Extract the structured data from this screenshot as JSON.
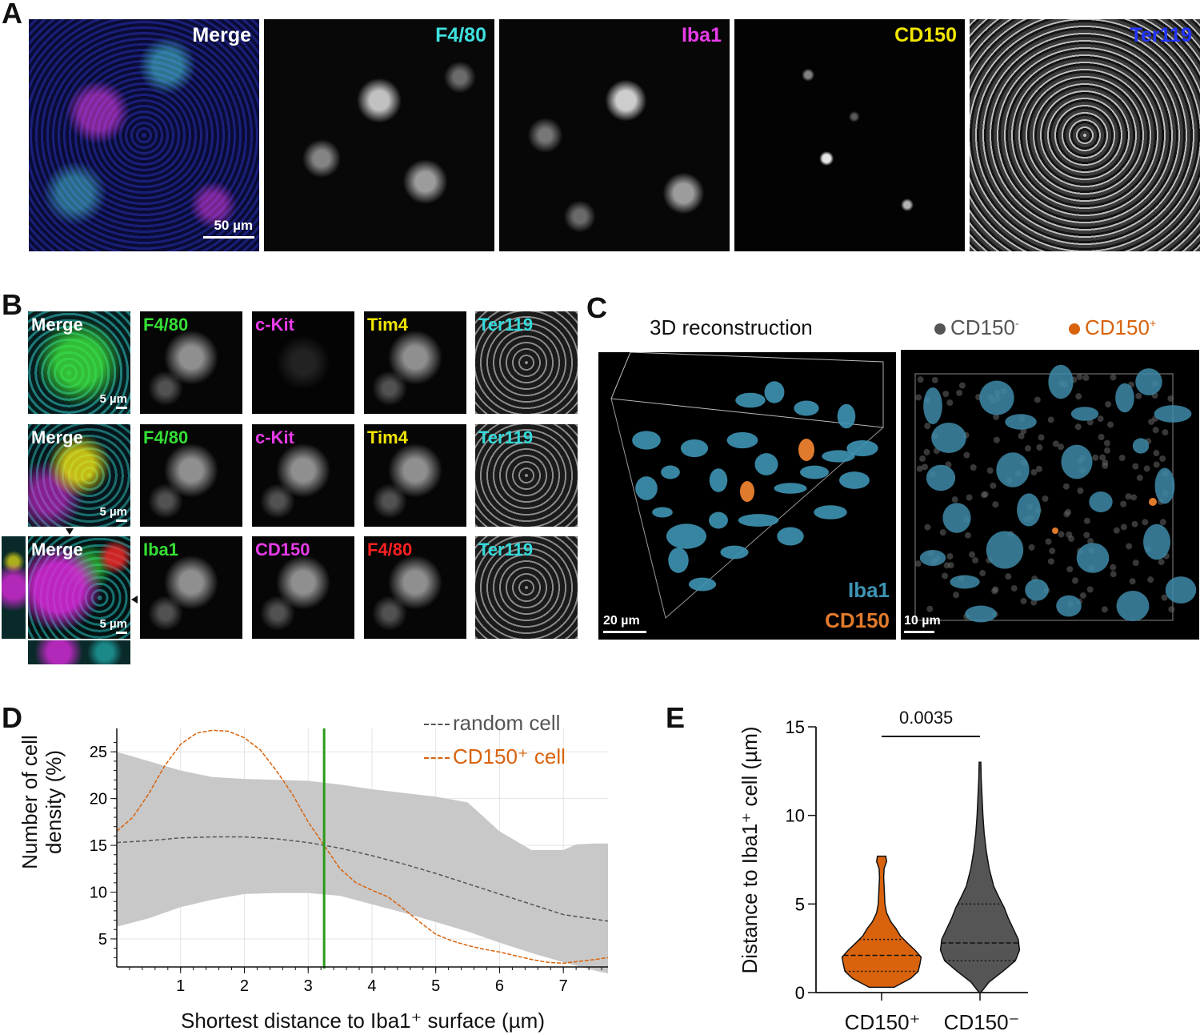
{
  "panelA": {
    "label": "A",
    "channels": [
      {
        "name": "Merge",
        "color": "#ffffff"
      },
      {
        "name": "F4/80",
        "color": "#3fe0e0"
      },
      {
        "name": "Iba1",
        "color": "#e83be8"
      },
      {
        "name": "CD150",
        "color": "#f2e600"
      },
      {
        "name": "Ter119",
        "color": "#2233ff"
      }
    ],
    "scale_bar": "50 µm"
  },
  "panelB": {
    "label": "B",
    "rows": [
      {
        "scale_bar": "5 µm",
        "channels": [
          {
            "name": "Merge",
            "color": "#ffffff"
          },
          {
            "name": "F4/80",
            "color": "#35e035"
          },
          {
            "name": "c-Kit",
            "color": "#e83be8"
          },
          {
            "name": "Tim4",
            "color": "#f2e600"
          },
          {
            "name": "Ter119",
            "color": "#33dada"
          }
        ]
      },
      {
        "scale_bar": "5 µm",
        "channels": [
          {
            "name": "Merge",
            "color": "#ffffff"
          },
          {
            "name": "F4/80",
            "color": "#35e035"
          },
          {
            "name": "c-Kit",
            "color": "#e83be8"
          },
          {
            "name": "Tim4",
            "color": "#f2e600"
          },
          {
            "name": "Ter119",
            "color": "#33dada"
          }
        ]
      },
      {
        "scale_bar": "5 µm",
        "channels": [
          {
            "name": "Merge",
            "color": "#ffffff"
          },
          {
            "name": "Iba1",
            "color": "#35e035"
          },
          {
            "name": "CD150",
            "color": "#e83be8"
          },
          {
            "name": "F4/80",
            "color": "#ff2020"
          },
          {
            "name": "Ter119",
            "color": "#33dada"
          }
        ]
      }
    ]
  },
  "panelC": {
    "label": "C",
    "title": "3D reconstruction",
    "legend": [
      {
        "name": "CD150",
        "sup": "-",
        "color": "#555555"
      },
      {
        "name": "CD150",
        "sup": "+",
        "color": "#d9630d"
      }
    ],
    "left": {
      "label1": "Iba1",
      "label1_color": "#3e94b4",
      "label2": "CD150",
      "label2_color": "#e07a2c",
      "scale_bar": "20 µm"
    },
    "right": {
      "scale_bar": "10 µm"
    }
  },
  "panelD": {
    "label": "D",
    "ylabel_line1": "Number of cell",
    "ylabel_line2": "density (%)",
    "xlabel": "Shortest distance to Iba1⁺ surface (µm)",
    "legend": [
      {
        "name": "random cell",
        "color": "#555555"
      },
      {
        "name": "CD150⁺ cell",
        "color": "#d9630d"
      }
    ],
    "vline_color": "#2a9a1a"
  },
  "panelE": {
    "label": "E",
    "ylabel": "Distance to Iba1⁺ cell (µm)",
    "pvalue": "0.0035",
    "categories": [
      "CD150⁺",
      "CD150⁻"
    ],
    "colors": [
      "#d9630d",
      "#555555"
    ]
  },
  "chart_data": [
    {
      "type": "line",
      "panel": "D",
      "xlabel": "Shortest distance to Iba1⁺ surface (µm)",
      "ylabel": "Number of cell density (%)",
      "xlim": [
        0,
        7.7
      ],
      "ylim": [
        2,
        27.5
      ],
      "xticks": [
        1,
        2,
        3,
        4,
        5,
        6,
        7
      ],
      "yticks": [
        5,
        10,
        15,
        20,
        25
      ],
      "vline_x": 3.25,
      "series": [
        {
          "name": "random cell",
          "x": [
            0,
            0.5,
            1,
            1.5,
            2,
            2.5,
            3,
            3.5,
            4,
            4.5,
            5,
            5.5,
            6,
            6.5,
            7,
            7.7
          ],
          "y": [
            15.3,
            15.5,
            15.8,
            15.9,
            15.9,
            15.7,
            15.3,
            14.7,
            13.9,
            13.0,
            12.0,
            10.9,
            9.8,
            8.7,
            7.6,
            6.9
          ]
        },
        {
          "name": "CD150⁺ cell",
          "x": [
            0,
            0.25,
            0.5,
            0.75,
            1,
            1.25,
            1.5,
            1.75,
            2,
            2.25,
            2.5,
            2.75,
            3,
            3.25,
            3.5,
            3.75,
            4,
            4.25,
            4.5,
            4.75,
            5,
            5.25,
            5.5,
            5.75,
            6,
            6.25,
            6.5,
            6.75,
            7,
            7.25,
            7.5,
            7.7
          ],
          "y": [
            16.5,
            18.0,
            20.5,
            23.5,
            25.8,
            27.0,
            27.3,
            27.2,
            26.5,
            25.2,
            23.0,
            20.5,
            17.5,
            15.0,
            12.5,
            11.0,
            10.2,
            9.5,
            8.2,
            6.8,
            5.5,
            4.8,
            4.3,
            3.9,
            3.6,
            3.2,
            2.8,
            2.5,
            2.4,
            2.6,
            2.8,
            3.0
          ]
        },
        {
          "name": "band_upper",
          "x": [
            0,
            0.5,
            1,
            1.5,
            2,
            2.5,
            3,
            3.5,
            4,
            4.5,
            5,
            5.5,
            6,
            6.5,
            7,
            7.2,
            7.5,
            7.7
          ],
          "y": [
            25.0,
            24.0,
            23.0,
            22.3,
            22.1,
            22.0,
            21.9,
            21.5,
            21.0,
            20.6,
            20.2,
            19.6,
            16.5,
            14.5,
            14.5,
            15.1,
            15.2,
            15.2
          ]
        },
        {
          "name": "band_lower",
          "x": [
            0,
            0.5,
            1,
            1.5,
            2,
            2.5,
            3,
            3.5,
            4,
            4.5,
            5,
            5.5,
            6,
            6.5,
            7,
            7.5,
            7.7
          ],
          "y": [
            6.3,
            7.2,
            8.4,
            9.2,
            9.8,
            9.9,
            9.9,
            9.6,
            8.7,
            7.8,
            6.8,
            5.8,
            4.6,
            3.5,
            2.5,
            1.6,
            1.3
          ]
        }
      ]
    },
    {
      "type": "violin",
      "panel": "E",
      "ylabel": "Distance to Iba1⁺ cell (µm)",
      "ylim": [
        0,
        15
      ],
      "yticks": [
        0,
        5,
        10,
        15
      ],
      "categories": [
        "CD150⁺",
        "CD150⁻"
      ],
      "series": [
        {
          "name": "CD150⁺",
          "ymin": 0.3,
          "ymax": 7.7,
          "median": 2.1,
          "q1": 1.2,
          "q3": 3.0,
          "profile_y": [
            0.3,
            0.8,
            1.2,
            1.6,
            2.0,
            2.4,
            2.8,
            3.2,
            3.6,
            4.0,
            4.5,
            5.0,
            5.5,
            6.0,
            6.5,
            7.0,
            7.4,
            7.7
          ],
          "profile_w": [
            0.3,
            0.7,
            0.88,
            0.92,
            0.95,
            0.8,
            0.62,
            0.45,
            0.35,
            0.22,
            0.12,
            0.08,
            0.07,
            0.06,
            0.05,
            0.06,
            0.12,
            0.1
          ]
        },
        {
          "name": "CD150⁻",
          "ymin": 0.0,
          "ymax": 13.0,
          "median": 2.8,
          "q1": 1.8,
          "q3": 5.0,
          "profile_y": [
            0.0,
            0.6,
            1.2,
            1.8,
            2.4,
            3.0,
            3.6,
            4.2,
            4.8,
            5.4,
            6.0,
            7.0,
            8.0,
            9.0,
            10.0,
            11.0,
            12.0,
            13.0
          ],
          "profile_w": [
            0.02,
            0.22,
            0.55,
            0.85,
            0.95,
            0.92,
            0.8,
            0.68,
            0.58,
            0.45,
            0.33,
            0.22,
            0.15,
            0.1,
            0.07,
            0.05,
            0.03,
            0.02
          ]
        }
      ]
    }
  ]
}
